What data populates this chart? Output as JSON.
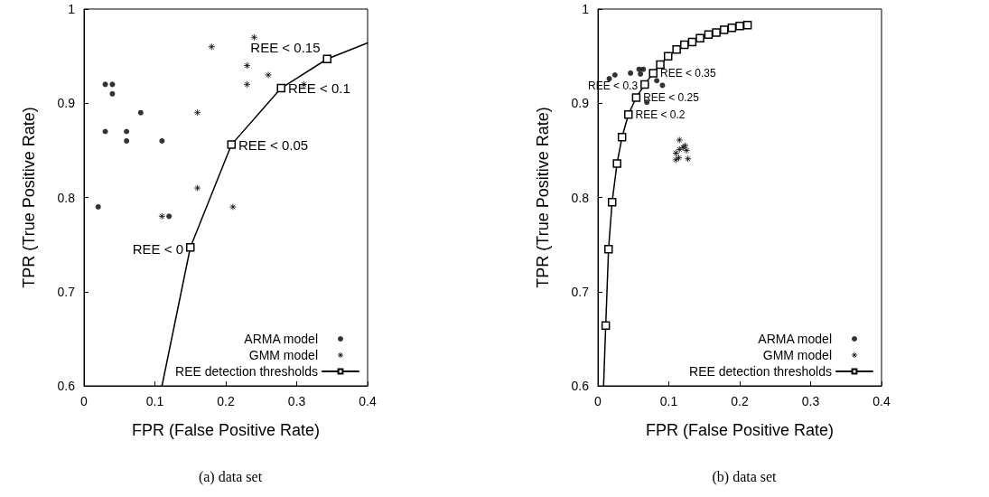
{
  "chart_data": [
    {
      "type": "scatter",
      "title": "(a) data set",
      "xlabel": "FPR (False Positive Rate)",
      "ylabel": "TPR (True Positive Rate)",
      "xlim": [
        0,
        0.4
      ],
      "ylim": [
        0.6,
        1
      ],
      "xticks": [
        0,
        0.1,
        0.2,
        0.3,
        0.4
      ],
      "yticks": [
        0.6,
        0.7,
        0.8,
        0.9,
        1
      ],
      "grid": false,
      "legend": "bottom right",
      "series": [
        {
          "name": "ARMA model",
          "marker": "circle",
          "color": "#000000",
          "x": [
            0.02,
            0.03,
            0.04,
            0.04,
            0.03,
            0.06,
            0.06,
            0.08,
            0.11,
            0.12
          ],
          "values": [
            0.79,
            0.92,
            0.92,
            0.91,
            0.87,
            0.87,
            0.86,
            0.89,
            0.86,
            0.78
          ]
        },
        {
          "name": "GMM model",
          "marker": "cross",
          "color": "#000000",
          "x": [
            0.11,
            0.16,
            0.16,
            0.18,
            0.21,
            0.23,
            0.23,
            0.24,
            0.26,
            0.31
          ],
          "values": [
            0.78,
            0.89,
            0.81,
            0.96,
            0.79,
            0.94,
            0.92,
            0.97,
            0.93,
            0.92
          ]
        },
        {
          "name": "REE detection thresholds",
          "type": "line",
          "marker": "square",
          "line_style": "solid",
          "color": "#000000",
          "x": [
            0.11,
            0.15,
            0.208,
            0.278,
            0.343,
            0.4
          ],
          "values": [
            0.6,
            0.747,
            0.856,
            0.916,
            0.947,
            0.964
          ]
        }
      ],
      "annotations": [
        {
          "text": "REE < 0",
          "x": 0.15,
          "y": 0.747
        },
        {
          "text": "REE < 0.05",
          "x": 0.208,
          "y": 0.856
        },
        {
          "text": "REE < 0.1",
          "x": 0.278,
          "y": 0.916
        },
        {
          "text": "REE < 0.15",
          "x": 0.343,
          "y": 0.947
        }
      ]
    },
    {
      "type": "scatter",
      "title": "(b) data set",
      "xlabel": "FPR (False Positive Rate)",
      "ylabel": "TPR (True Positive Rate)",
      "xlim": [
        0,
        0.4
      ],
      "ylim": [
        0.6,
        1
      ],
      "xticks": [
        0,
        0.1,
        0.2,
        0.3,
        0.4
      ],
      "yticks": [
        0.6,
        0.7,
        0.8,
        0.9,
        1
      ],
      "grid": false,
      "legend": "bottom right",
      "series": [
        {
          "name": "ARMA model",
          "marker": "circle",
          "color": "#000000",
          "x": [
            0.016,
            0.024,
            0.046,
            0.058,
            0.06,
            0.064,
            0.083,
            0.091,
            0.069
          ],
          "values": [
            0.926,
            0.93,
            0.932,
            0.936,
            0.931,
            0.936,
            0.924,
            0.919,
            0.901
          ]
        },
        {
          "name": "GMM model",
          "marker": "cross",
          "color": "#000000",
          "x": [
            0.115,
            0.11,
            0.115,
            0.12,
            0.123,
            0.125,
            0.11,
            0.114,
            0.127
          ],
          "values": [
            0.861,
            0.847,
            0.851,
            0.853,
            0.855,
            0.85,
            0.84,
            0.842,
            0.841
          ]
        },
        {
          "name": "REE detection thresholds",
          "type": "line",
          "marker": "square",
          "line_style": "solid",
          "color": "#000000",
          "x": [
            0.008,
            0.011,
            0.015,
            0.02,
            0.027,
            0.034,
            0.043,
            0.054,
            0.066,
            0.078,
            0.088,
            0.099,
            0.111,
            0.122,
            0.133,
            0.144,
            0.156,
            0.167,
            0.178,
            0.189,
            0.2,
            0.211
          ],
          "values": [
            0.6,
            0.664,
            0.745,
            0.795,
            0.836,
            0.864,
            0.888,
            0.906,
            0.92,
            0.932,
            0.941,
            0.95,
            0.957,
            0.962,
            0.965,
            0.969,
            0.973,
            0.975,
            0.978,
            0.98,
            0.982,
            0.983
          ]
        }
      ],
      "annotations": [
        {
          "text": "REE < 0.35",
          "x": 0.078,
          "y": 0.932
        },
        {
          "text": "REE < 0.3",
          "x": 0.066,
          "y": 0.92
        },
        {
          "text": "REE < 0.25",
          "x": 0.054,
          "y": 0.906
        },
        {
          "text": "REE < 0.2",
          "x": 0.043,
          "y": 0.888
        }
      ]
    }
  ]
}
